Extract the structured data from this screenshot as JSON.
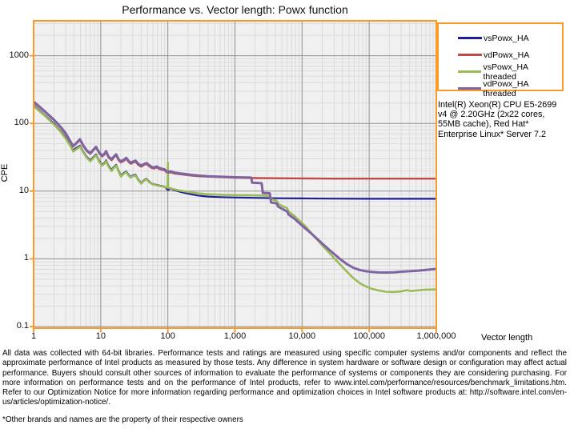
{
  "colors": {
    "accent_orange": "#F99B26",
    "plot_bg": "#F0F0F0",
    "grid_minor": "#DBDBDB",
    "grid_major": "#909090",
    "text": "#000000"
  },
  "chart_data": {
    "type": "line",
    "title": "Performance vs. Vector length: Powx function",
    "xlabel": "Vector length",
    "ylabel": "CPE",
    "x_scale": "log",
    "y_scale": "log",
    "xlim": [
      1,
      1000000
    ],
    "ylim": [
      0.1,
      3200
    ],
    "grid": "major and minor log gridlines, gray plot area, orange axis frame",
    "legend_position": "outside top-right",
    "x_ticks": {
      "values": [
        1,
        10,
        100,
        1000,
        10000,
        100000,
        1000000
      ],
      "labels": [
        "1",
        "10",
        "100",
        "1,000",
        "10,000",
        "100,000",
        "1,000,000"
      ]
    },
    "y_ticks": {
      "values": [
        0.1,
        1,
        10,
        100,
        1000
      ],
      "labels": [
        "0.1",
        "1",
        "10",
        "100",
        "1000"
      ]
    },
    "series": [
      {
        "name": "vsPowx_HA",
        "color": "#1F1F96",
        "width": 2.2,
        "points": [
          [
            1,
            185
          ],
          [
            1.5,
            130
          ],
          [
            2,
            100
          ],
          [
            2.5,
            78
          ],
          [
            3,
            62
          ],
          [
            3.5,
            48
          ],
          [
            3.9,
            40
          ],
          [
            4.4,
            44
          ],
          [
            4.9,
            47
          ],
          [
            5.5,
            38
          ],
          [
            6.2,
            32
          ],
          [
            7,
            28.5
          ],
          [
            7.6,
            31
          ],
          [
            8.5,
            35
          ],
          [
            9.5,
            28
          ],
          [
            10.5,
            24.5
          ],
          [
            11.3,
            26
          ],
          [
            12,
            28.5
          ],
          [
            13,
            24
          ],
          [
            14.5,
            20.5
          ],
          [
            15.5,
            22.5
          ],
          [
            17,
            24.5
          ],
          [
            18.5,
            20
          ],
          [
            20,
            17
          ],
          [
            22,
            18.5
          ],
          [
            24,
            19.5
          ],
          [
            26,
            17.5
          ],
          [
            28,
            16.2
          ],
          [
            30,
            17
          ],
          [
            33,
            17.5
          ],
          [
            36,
            15
          ],
          [
            40,
            13.2
          ],
          [
            44,
            14.5
          ],
          [
            48,
            15.3
          ],
          [
            52,
            14
          ],
          [
            57,
            13
          ],
          [
            62,
            12.6
          ],
          [
            68,
            12.4
          ],
          [
            75,
            12.1
          ],
          [
            82,
            11.9
          ],
          [
            90,
            11.6
          ],
          [
            100,
            10.4
          ],
          [
            110,
            10.9
          ],
          [
            125,
            10.3
          ],
          [
            150,
            9.8
          ],
          [
            180,
            9.4
          ],
          [
            220,
            9.0
          ],
          [
            280,
            8.6
          ],
          [
            400,
            8.3
          ],
          [
            600,
            8.15
          ],
          [
            1000,
            8.05
          ],
          [
            2000,
            7.95
          ],
          [
            4000,
            7.85
          ],
          [
            10000,
            7.8
          ],
          [
            30000,
            7.75
          ],
          [
            100000,
            7.7
          ],
          [
            300000,
            7.7
          ],
          [
            1000000,
            7.7
          ]
        ]
      },
      {
        "name": "vdPowx_HA",
        "color": "#BE4B48",
        "width": 2.4,
        "points": [
          [
            1,
            205
          ],
          [
            1.5,
            145
          ],
          [
            2,
            112
          ],
          [
            2.5,
            88
          ],
          [
            3,
            70
          ],
          [
            3.5,
            54
          ],
          [
            3.9,
            45.5
          ],
          [
            4.4,
            51
          ],
          [
            4.9,
            57
          ],
          [
            5.5,
            46
          ],
          [
            6.2,
            39
          ],
          [
            7,
            35.5
          ],
          [
            7.6,
            39
          ],
          [
            8.5,
            44
          ],
          [
            9.5,
            36
          ],
          [
            10.5,
            32.5
          ],
          [
            11.3,
            34.5
          ],
          [
            12,
            38
          ],
          [
            13,
            31.5
          ],
          [
            14.5,
            28.5
          ],
          [
            15.5,
            31
          ],
          [
            17,
            34
          ],
          [
            18.5,
            28.5
          ],
          [
            20,
            26.5
          ],
          [
            22,
            28
          ],
          [
            24,
            30
          ],
          [
            26,
            27
          ],
          [
            28,
            25.3
          ],
          [
            30,
            26.2
          ],
          [
            33,
            27.2
          ],
          [
            36,
            24.5
          ],
          [
            40,
            23
          ],
          [
            44,
            24.3
          ],
          [
            48,
            25.2
          ],
          [
            52,
            23.6
          ],
          [
            57,
            22
          ],
          [
            62,
            21.6
          ],
          [
            68,
            22.4
          ],
          [
            75,
            21.2
          ],
          [
            82,
            20.7
          ],
          [
            90,
            20.2
          ],
          [
            100,
            18.3
          ],
          [
            110,
            19
          ],
          [
            125,
            18.2
          ],
          [
            150,
            17.8
          ],
          [
            180,
            17.4
          ],
          [
            220,
            17
          ],
          [
            280,
            16.7
          ],
          [
            400,
            16.3
          ],
          [
            600,
            16.1
          ],
          [
            1000,
            15.8
          ],
          [
            2000,
            15.6
          ],
          [
            4000,
            15.5
          ],
          [
            10000,
            15.4
          ],
          [
            30000,
            15.3
          ],
          [
            100000,
            15.3
          ],
          [
            300000,
            15.3
          ],
          [
            1000000,
            15.3
          ]
        ]
      },
      {
        "name": "vsPowx_HA threaded",
        "color": "#9BBB59",
        "width": 2.6,
        "points": [
          [
            1,
            180
          ],
          [
            1.5,
            127
          ],
          [
            2,
            97
          ],
          [
            2.5,
            76
          ],
          [
            3,
            60
          ],
          [
            3.5,
            47
          ],
          [
            3.9,
            38.5
          ],
          [
            4.4,
            42
          ],
          [
            4.9,
            45.5
          ],
          [
            5.5,
            37
          ],
          [
            6.2,
            31
          ],
          [
            7,
            27.5
          ],
          [
            7.6,
            30
          ],
          [
            8.5,
            34
          ],
          [
            9.5,
            27
          ],
          [
            10.5,
            23.8
          ],
          [
            11.3,
            25.2
          ],
          [
            12,
            27.6
          ],
          [
            13,
            23.2
          ],
          [
            14.5,
            19.8
          ],
          [
            15.5,
            21.8
          ],
          [
            17,
            23.8
          ],
          [
            18.5,
            19.3
          ],
          [
            20,
            16.4
          ],
          [
            22,
            18
          ],
          [
            24,
            19
          ],
          [
            26,
            17
          ],
          [
            28,
            15.8
          ],
          [
            30,
            16.6
          ],
          [
            33,
            17.1
          ],
          [
            36,
            14.6
          ],
          [
            40,
            12.9
          ],
          [
            44,
            14.2
          ],
          [
            48,
            15
          ],
          [
            52,
            13.7
          ],
          [
            57,
            12.8
          ],
          [
            62,
            12.4
          ],
          [
            68,
            12.2
          ],
          [
            75,
            11.9
          ],
          [
            82,
            11.7
          ],
          [
            90,
            11.5
          ],
          [
            96,
            11.3
          ],
          [
            99,
            11.4
          ],
          [
            100,
            26.5
          ],
          [
            101,
            11.2
          ],
          [
            110,
            11.0
          ],
          [
            125,
            10.6
          ],
          [
            150,
            10.2
          ],
          [
            180,
            9.9
          ],
          [
            220,
            9.6
          ],
          [
            280,
            9.3
          ],
          [
            400,
            9.0
          ],
          [
            600,
            8.85
          ],
          [
            1000,
            8.7
          ],
          [
            1500,
            8.65
          ],
          [
            2200,
            8.6
          ],
          [
            3300,
            8.5
          ],
          [
            3500,
            7.6
          ],
          [
            4200,
            7.2
          ],
          [
            4500,
            6.4
          ],
          [
            5300,
            5.9
          ],
          [
            6000,
            5.6
          ],
          [
            6300,
            5.0
          ],
          [
            7500,
            4.4
          ],
          [
            9000,
            3.7
          ],
          [
            11000,
            3.1
          ],
          [
            13500,
            2.45
          ],
          [
            16500,
            1.95
          ],
          [
            20000,
            1.58
          ],
          [
            25000,
            1.25
          ],
          [
            31000,
            0.99
          ],
          [
            38000,
            0.8
          ],
          [
            47000,
            0.64
          ],
          [
            58000,
            0.52
          ],
          [
            72000,
            0.44
          ],
          [
            90000,
            0.39
          ],
          [
            110000,
            0.36
          ],
          [
            140000,
            0.34
          ],
          [
            180000,
            0.327
          ],
          [
            230000,
            0.324
          ],
          [
            300000,
            0.33
          ],
          [
            360000,
            0.345
          ],
          [
            420000,
            0.335
          ],
          [
            500000,
            0.34
          ],
          [
            650000,
            0.35
          ],
          [
            800000,
            0.352
          ],
          [
            1000000,
            0.355
          ]
        ]
      },
      {
        "name": "vdPowx_HA threaded",
        "color": "#8064A2",
        "width": 3,
        "points": [
          [
            1,
            210
          ],
          [
            1.5,
            148
          ],
          [
            2,
            114
          ],
          [
            2.5,
            90
          ],
          [
            3,
            72
          ],
          [
            3.5,
            55
          ],
          [
            3.9,
            46.5
          ],
          [
            4.4,
            52
          ],
          [
            4.9,
            58.5
          ],
          [
            5.5,
            47
          ],
          [
            6.2,
            40
          ],
          [
            7,
            36.5
          ],
          [
            7.6,
            40
          ],
          [
            8.5,
            45
          ],
          [
            9.5,
            37
          ],
          [
            10.5,
            33.5
          ],
          [
            11.3,
            35.5
          ],
          [
            12,
            39
          ],
          [
            13,
            32.5
          ],
          [
            14.5,
            29.5
          ],
          [
            15.5,
            32
          ],
          [
            17,
            35
          ],
          [
            18.5,
            29.5
          ],
          [
            20,
            27.5
          ],
          [
            22,
            29
          ],
          [
            24,
            31
          ],
          [
            26,
            28
          ],
          [
            28,
            26.3
          ],
          [
            30,
            27.2
          ],
          [
            33,
            28.2
          ],
          [
            36,
            25.5
          ],
          [
            40,
            23.8
          ],
          [
            44,
            25.1
          ],
          [
            48,
            26
          ],
          [
            52,
            24.4
          ],
          [
            57,
            22.8
          ],
          [
            62,
            22.4
          ],
          [
            68,
            23.2
          ],
          [
            75,
            22
          ],
          [
            82,
            21.4
          ],
          [
            90,
            20.9
          ],
          [
            100,
            19
          ],
          [
            110,
            19.6
          ],
          [
            125,
            18.8
          ],
          [
            150,
            18.3
          ],
          [
            180,
            17.9
          ],
          [
            220,
            17.4
          ],
          [
            280,
            17
          ],
          [
            400,
            16.6
          ],
          [
            600,
            16.3
          ],
          [
            1000,
            16
          ],
          [
            1500,
            15.9
          ],
          [
            1750,
            15.85
          ],
          [
            1800,
            13.3
          ],
          [
            2500,
            13.1
          ],
          [
            2600,
            9.4
          ],
          [
            3300,
            9.3
          ],
          [
            3450,
            6.8
          ],
          [
            4200,
            6.6
          ],
          [
            4400,
            5.9
          ],
          [
            5200,
            5.4
          ],
          [
            6000,
            5.0
          ],
          [
            6300,
            4.5
          ],
          [
            7500,
            4.0
          ],
          [
            9000,
            3.4
          ],
          [
            11000,
            2.85
          ],
          [
            13500,
            2.4
          ],
          [
            16500,
            2.0
          ],
          [
            20000,
            1.68
          ],
          [
            25000,
            1.38
          ],
          [
            31000,
            1.15
          ],
          [
            38000,
            0.97
          ],
          [
            47000,
            0.83
          ],
          [
            58000,
            0.74
          ],
          [
            72000,
            0.685
          ],
          [
            90000,
            0.655
          ],
          [
            110000,
            0.64
          ],
          [
            140000,
            0.63
          ],
          [
            180000,
            0.628
          ],
          [
            230000,
            0.632
          ],
          [
            300000,
            0.645
          ],
          [
            400000,
            0.655
          ],
          [
            550000,
            0.67
          ],
          [
            750000,
            0.69
          ],
          [
            1000000,
            0.71
          ]
        ]
      }
    ]
  },
  "annotations": {
    "system_info": "Intel(R) Xeon(R) CPU E5-2699 v4 @ 2.20GHz (2x22 cores, 55MB cache), Red Hat* Enterprise Linux* Server 7.2",
    "disclaimer": "All data was collected with 64-bit libraries. Performance tests and ratings are measured using specific computer systems and/or components and reflect the approximate performance of Intel products as measured by those tests. Any difference in system hardware or software design or configuration may affect actual performance. Buyers should consult other sources of information to evaluate the performance of systems or components they are considering purchasing. For more information on performance tests and on the performance of Intel products, refer to www.intel.com/performance/resources/benchmark_limitations.htm. Refer to our Optimization Notice for more information regarding performance and optimization choices in Intel software products at: http://software.intel.com/en-us/articles/optimization-notice/.",
    "footnote": "*Other brands and names are the property of their respective owners"
  }
}
